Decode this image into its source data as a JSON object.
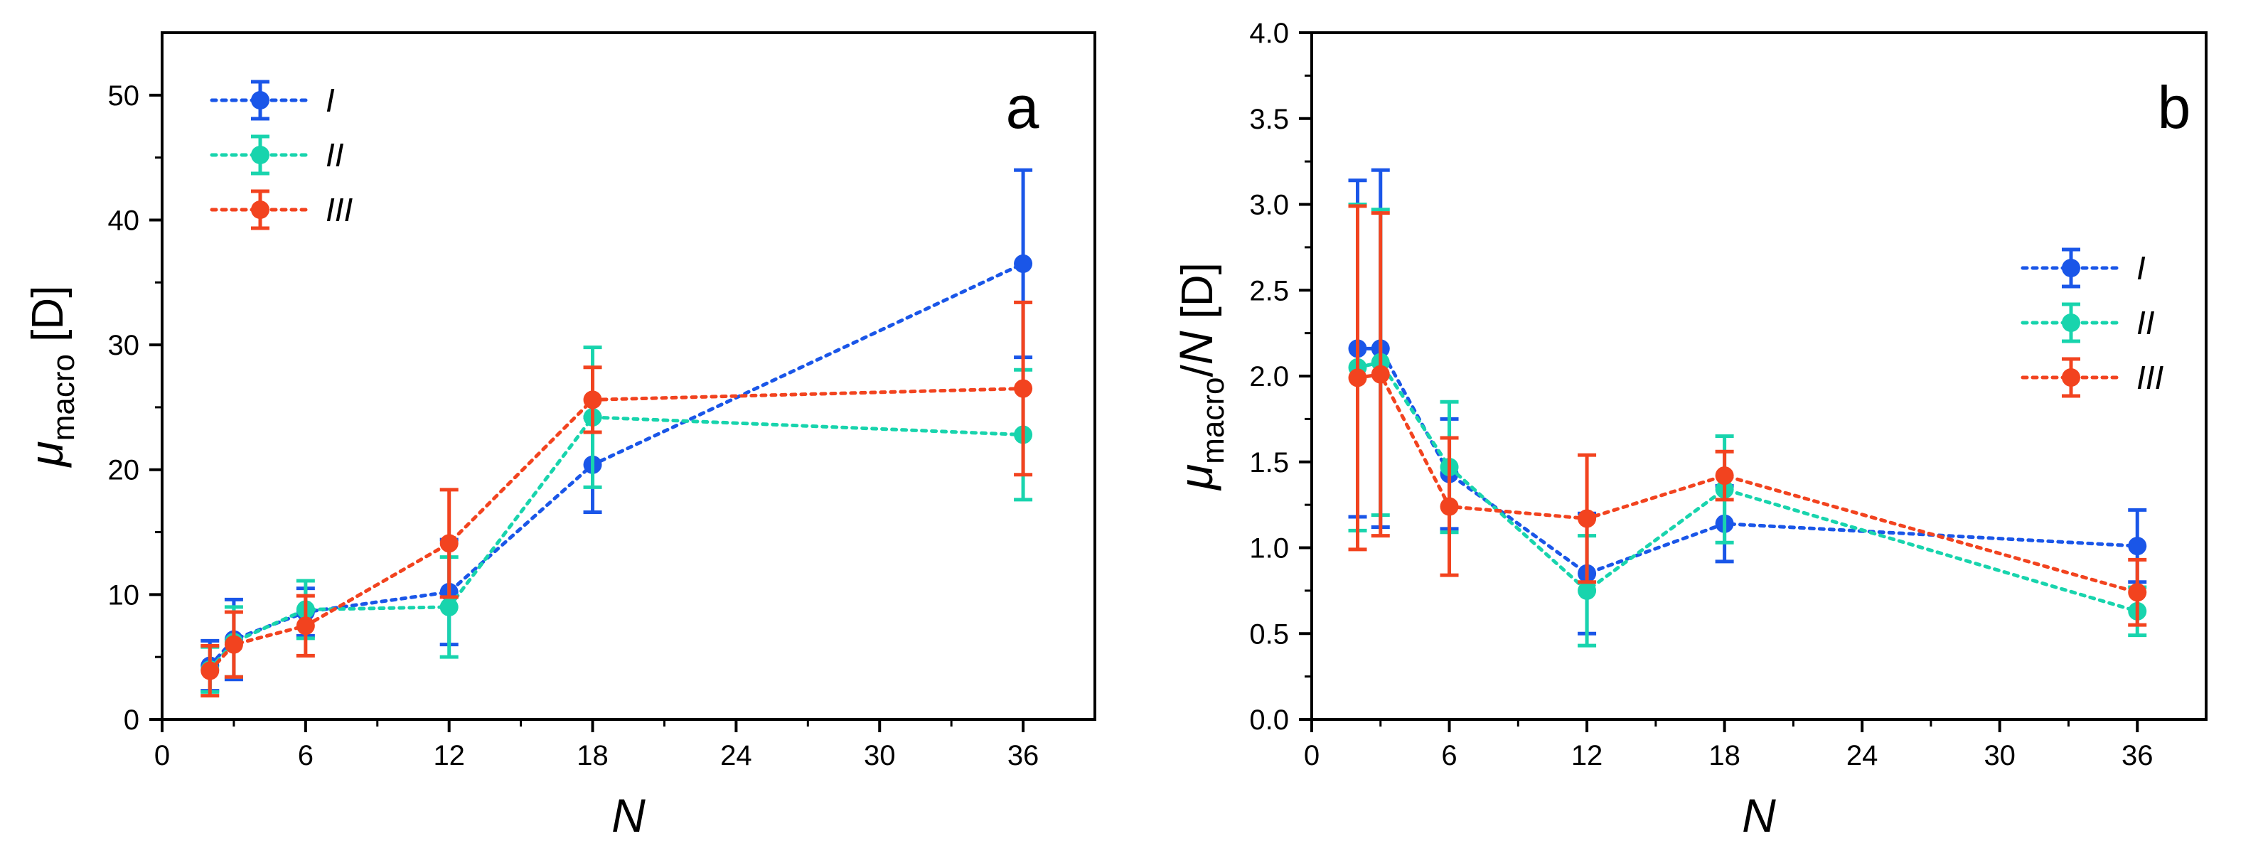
{
  "chart_data": [
    {
      "type": "scatter",
      "panel": "a",
      "xlabel": "N",
      "ylabel": {
        "symbol": "μ",
        "subscript": "macro",
        "suffix": " [D]"
      },
      "xlim": [
        0,
        39
      ],
      "ylim": [
        0,
        55
      ],
      "xticks": [
        0,
        6,
        12,
        18,
        24,
        30,
        36
      ],
      "xtick_labels": [
        "0",
        "6",
        "12",
        "18",
        "24",
        "30",
        "36"
      ],
      "yticks": [
        0,
        10,
        20,
        30,
        40,
        50
      ],
      "ytick_labels": [
        "0",
        "10",
        "20",
        "30",
        "40",
        "50"
      ],
      "legend_position": "top-left",
      "series": [
        {
          "name": "I",
          "color": "#1a56e8",
          "x": [
            2,
            3,
            6,
            12,
            18,
            36
          ],
          "y": [
            4.3,
            6.4,
            8.6,
            10.2,
            20.4,
            36.5
          ],
          "err": [
            2.0,
            3.2,
            1.9,
            4.2,
            3.8,
            7.5
          ]
        },
        {
          "name": "II",
          "color": "#18d4ad",
          "x": [
            2,
            3,
            6,
            12,
            18,
            36
          ],
          "y": [
            4.0,
            6.2,
            8.8,
            9.0,
            24.2,
            22.8
          ],
          "err": [
            1.8,
            2.8,
            2.3,
            4.0,
            5.6,
            5.2
          ]
        },
        {
          "name": "III",
          "color": "#f2431f",
          "x": [
            2,
            3,
            6,
            12,
            18,
            36
          ],
          "y": [
            3.9,
            6.0,
            7.5,
            14.1,
            25.6,
            26.5
          ],
          "err": [
            2.0,
            2.6,
            2.4,
            4.3,
            2.6,
            6.9
          ]
        }
      ]
    },
    {
      "type": "scatter",
      "panel": "b",
      "xlabel": "N",
      "ylabel": {
        "symbol": "μ",
        "subscript": "macro",
        "suffix": "/",
        "italic_part": "N",
        "tail": " [D]"
      },
      "xlim": [
        0,
        39
      ],
      "ylim": [
        0,
        4
      ],
      "xticks": [
        0,
        6,
        12,
        18,
        24,
        30,
        36
      ],
      "xtick_labels": [
        "0",
        "6",
        "12",
        "18",
        "24",
        "30",
        "36"
      ],
      "yticks": [
        0,
        0.5,
        1.0,
        1.5,
        2.0,
        2.5,
        3.0,
        3.5,
        4.0
      ],
      "ytick_labels": [
        "0.0",
        "0.5",
        "1.0",
        "1.5",
        "2.0",
        "2.5",
        "3.0",
        "3.5",
        "4.0"
      ],
      "legend_position": "right",
      "series": [
        {
          "name": "I",
          "color": "#1a56e8",
          "x": [
            2,
            3,
            6,
            12,
            18,
            36
          ],
          "y": [
            2.16,
            2.16,
            1.43,
            0.85,
            1.14,
            1.01
          ],
          "err": [
            0.98,
            1.04,
            0.32,
            0.35,
            0.22,
            0.21
          ]
        },
        {
          "name": "II",
          "color": "#18d4ad",
          "x": [
            2,
            3,
            6,
            12,
            18,
            36
          ],
          "y": [
            2.05,
            2.08,
            1.47,
            0.75,
            1.34,
            0.63
          ],
          "err": [
            0.95,
            0.89,
            0.38,
            0.32,
            0.31,
            0.14
          ]
        },
        {
          "name": "III",
          "color": "#f2431f",
          "x": [
            2,
            3,
            6,
            12,
            18,
            36
          ],
          "y": [
            1.99,
            2.01,
            1.24,
            1.17,
            1.42,
            0.74
          ],
          "err": [
            1.0,
            0.94,
            0.4,
            0.37,
            0.14,
            0.19
          ]
        }
      ]
    }
  ]
}
